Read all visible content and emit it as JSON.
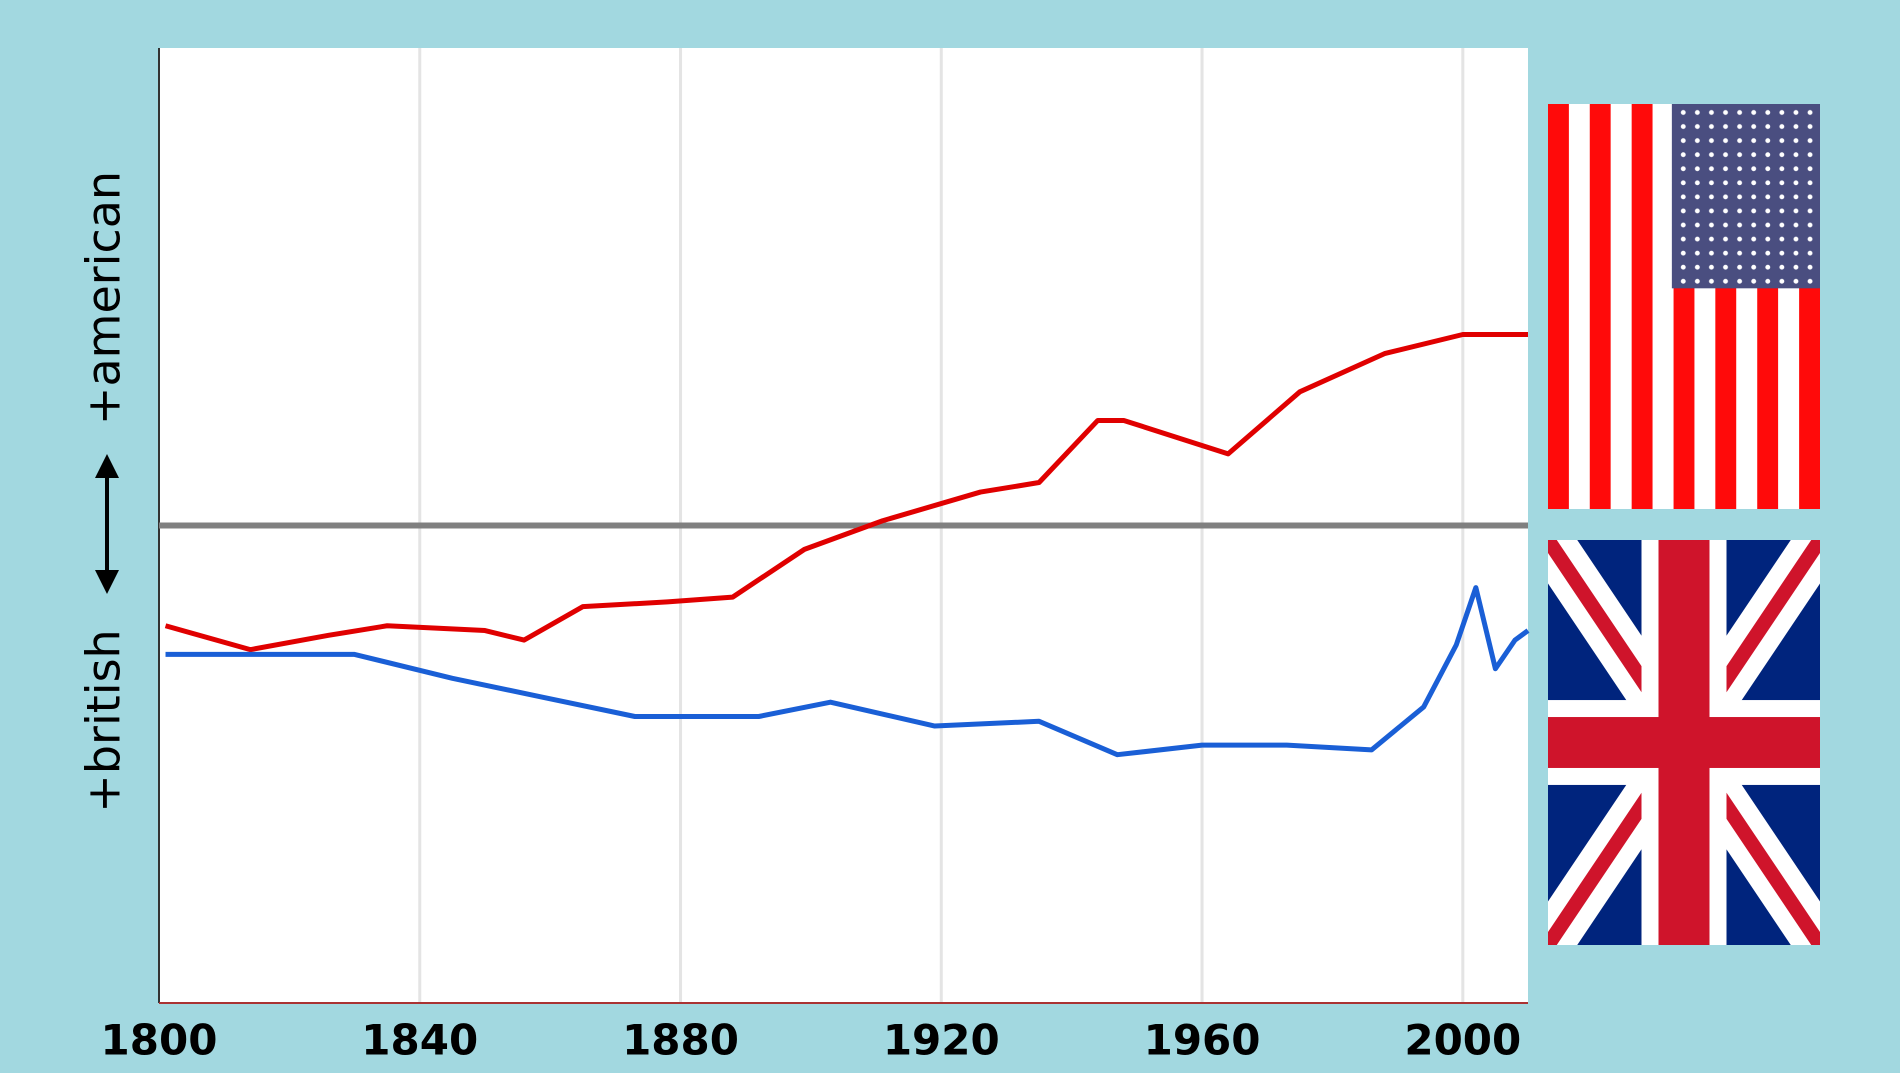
{
  "chart_data": {
    "type": "line",
    "y_label_bottom": "+british",
    "y_label_top": "+american",
    "xlim": [
      1800,
      2010
    ],
    "xticks": [
      1800,
      1840,
      1880,
      1920,
      1960,
      2000
    ],
    "ylim": [
      -1,
      1
    ],
    "grid": true,
    "series": [
      {
        "color": "#e00000",
        "x": [
          1801,
          1814,
          1826,
          1835,
          1850,
          1856,
          1865,
          1878,
          1888,
          1899,
          1911,
          1926,
          1935,
          1944,
          1948,
          1964,
          1975,
          1988,
          2000,
          2010
        ],
        "values": [
          -0.21,
          -0.26,
          -0.23,
          -0.21,
          -0.22,
          -0.24,
          -0.17,
          -0.16,
          -0.15,
          -0.05,
          0.01,
          0.07,
          0.09,
          0.22,
          0.22,
          0.15,
          0.28,
          0.36,
          0.4,
          0.4
        ]
      },
      {
        "color": "#1a5fd6",
        "x": [
          1801,
          1830,
          1845,
          1859,
          1873,
          1892,
          1903,
          1919,
          1935,
          1947,
          1960,
          1973,
          1986,
          1994,
          1999,
          2002,
          2005,
          2008,
          2010
        ],
        "values": [
          -0.27,
          -0.27,
          -0.32,
          -0.36,
          -0.4,
          -0.4,
          -0.37,
          -0.42,
          -0.41,
          -0.48,
          -0.46,
          -0.46,
          -0.47,
          -0.38,
          -0.25,
          -0.13,
          -0.3,
          -0.24,
          -0.22
        ]
      }
    ]
  }
}
